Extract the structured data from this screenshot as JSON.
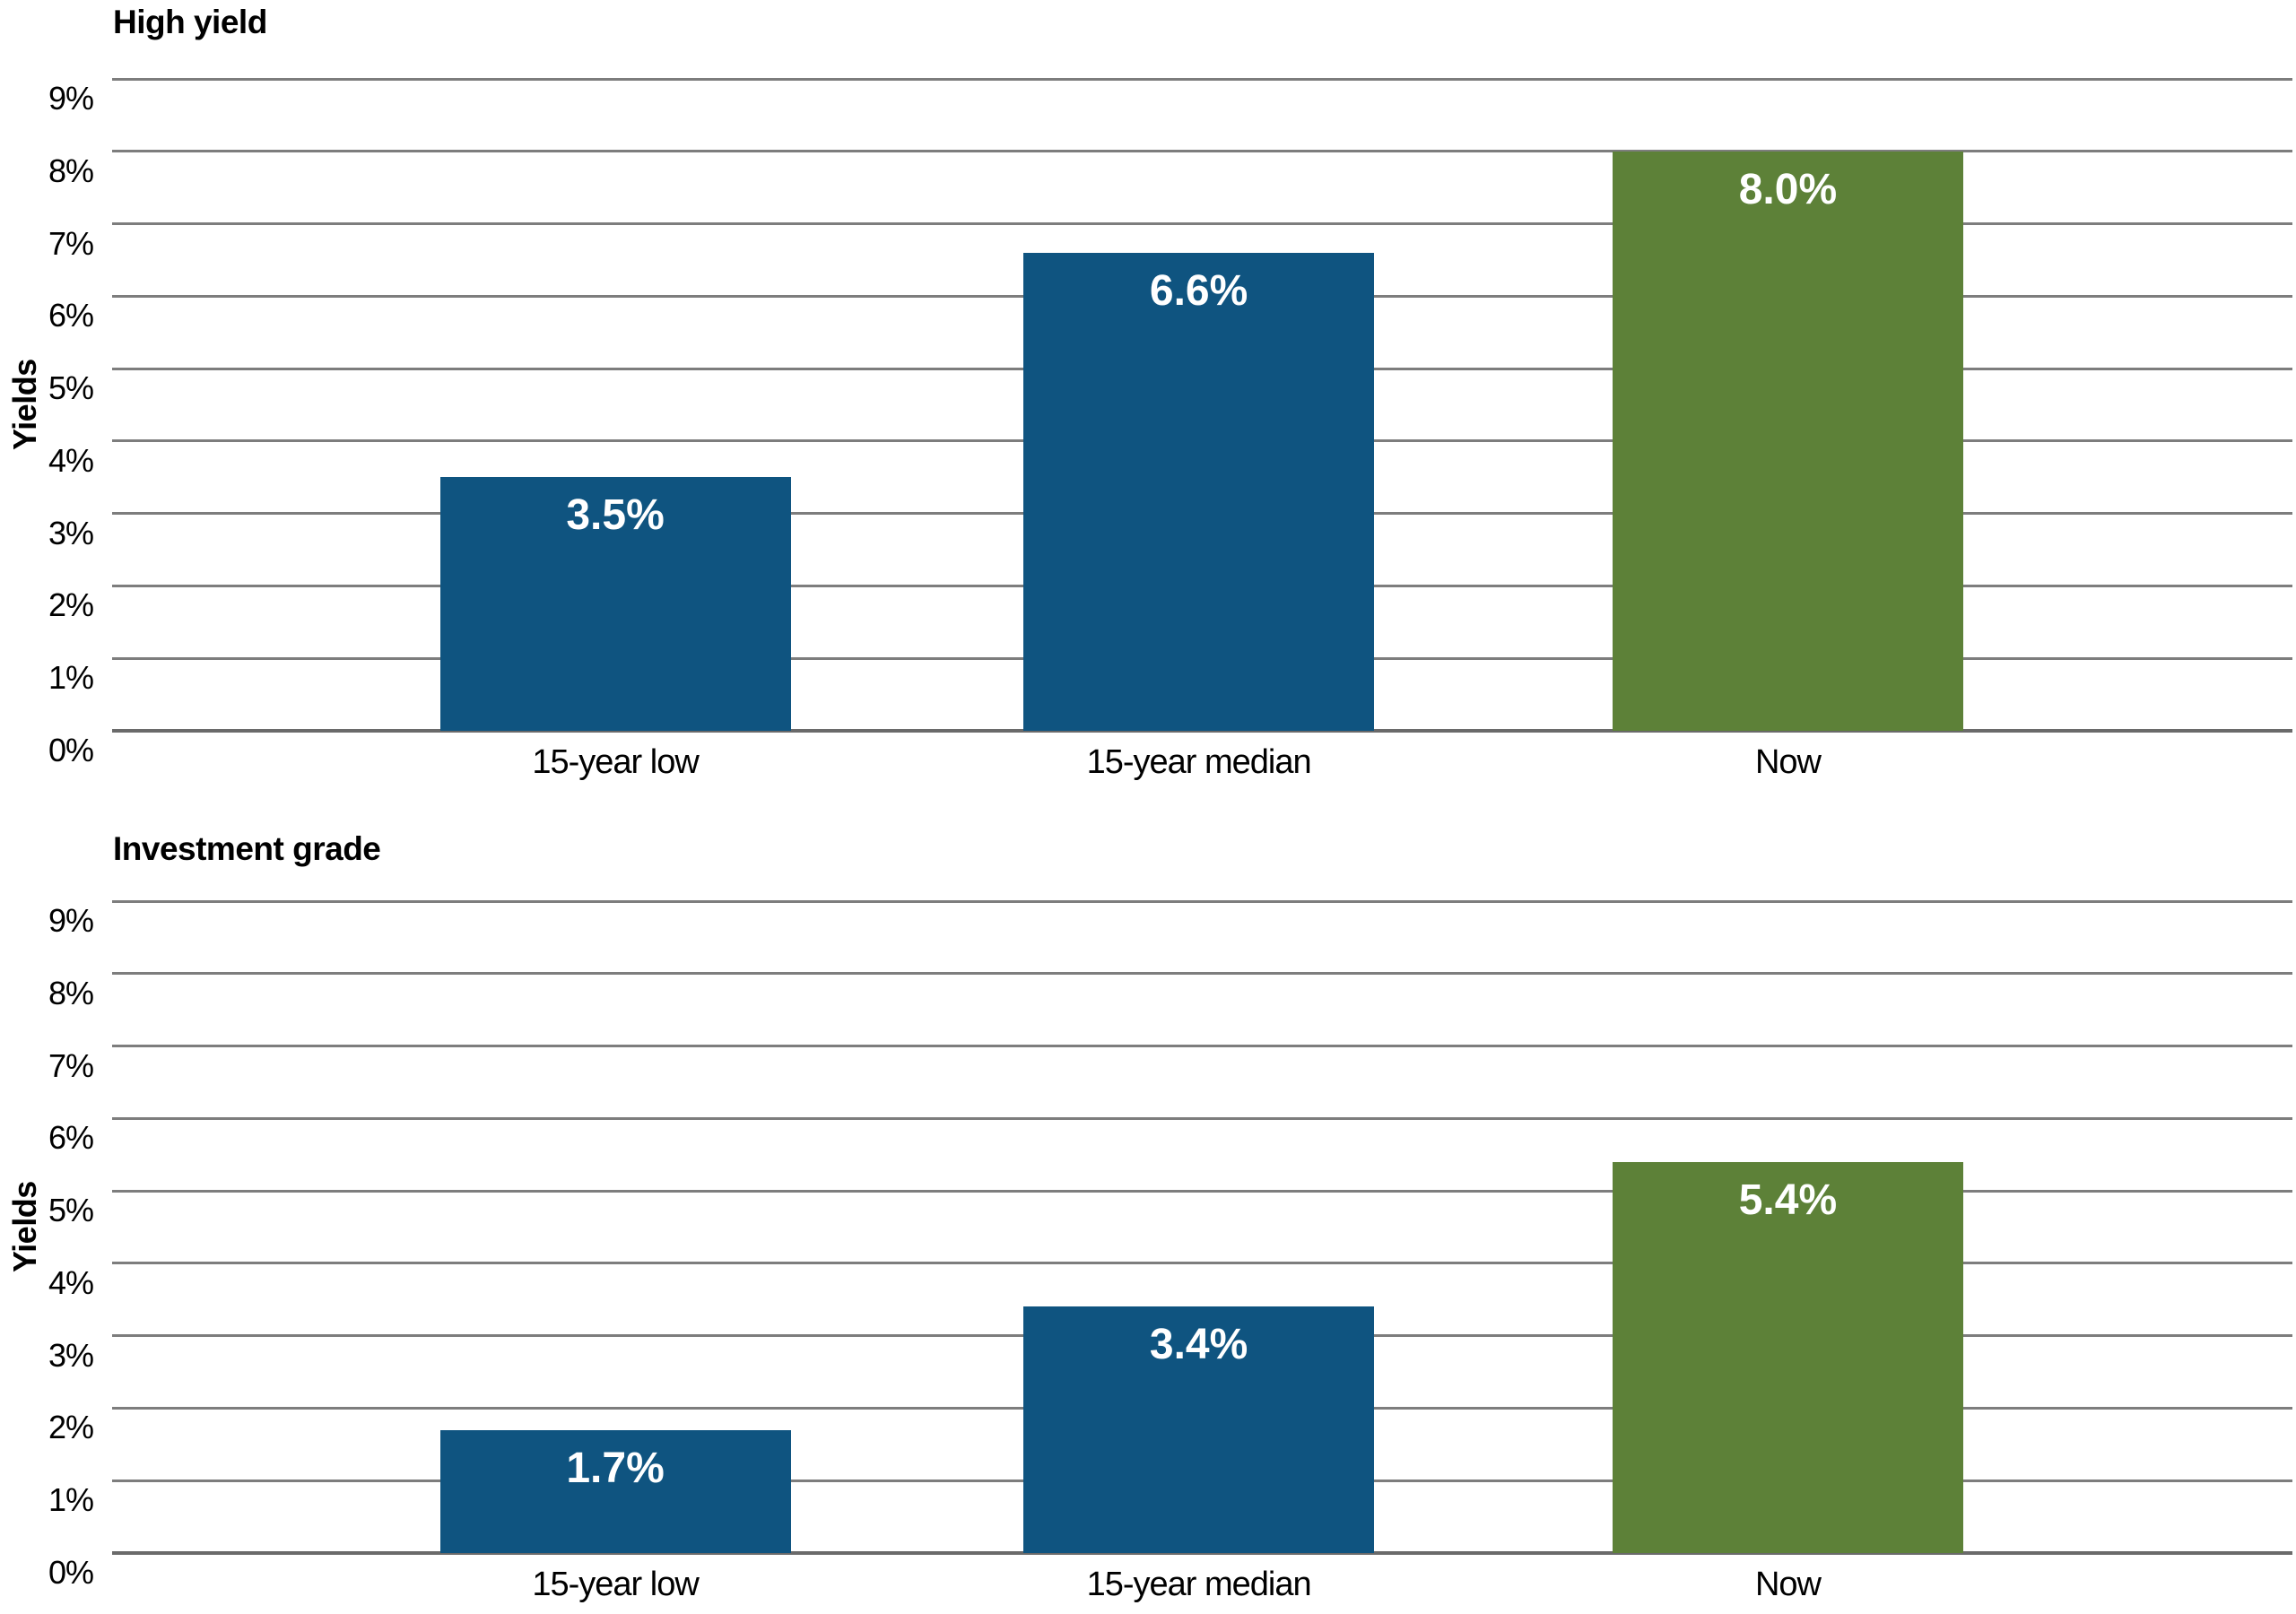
{
  "page": {
    "background": "#ffffff"
  },
  "colors": {
    "bar_blue": "#0f5480",
    "bar_green": "#5d8138",
    "gridline": "#7d7d7d",
    "axis_baseline": "#6a6a6a",
    "text": "#000000",
    "value_label_text": "#ffffff"
  },
  "chart_data": [
    {
      "type": "bar",
      "title": "High yield",
      "xlabel": "",
      "ylabel": "Yields",
      "categories": [
        "15-year low",
        "15-year median",
        "Now"
      ],
      "values": [
        3.5,
        6.6,
        8.0
      ],
      "value_labels": [
        "3.5%",
        "6.6%",
        "8.0%"
      ],
      "bar_colors": [
        "#0f5480",
        "#0f5480",
        "#5d8138"
      ],
      "ylim": [
        0,
        9
      ],
      "ytick_step": 1,
      "ytick_labels": [
        "9%",
        "8%",
        "7%",
        "6%",
        "5%",
        "4%",
        "3%",
        "2%",
        "1%",
        "0%"
      ],
      "grid": true,
      "legend_position": "none"
    },
    {
      "type": "bar",
      "title": "Investment grade",
      "xlabel": "",
      "ylabel": "Yields",
      "categories": [
        "15-year low",
        "15-year median",
        "Now"
      ],
      "values": [
        1.7,
        3.4,
        5.4
      ],
      "value_labels": [
        "1.7%",
        "3.4%",
        "5.4%"
      ],
      "bar_colors": [
        "#0f5480",
        "#0f5480",
        "#5d8138"
      ],
      "ylim": [
        0,
        9
      ],
      "ytick_step": 1,
      "ytick_labels": [
        "9%",
        "8%",
        "7%",
        "6%",
        "5%",
        "4%",
        "3%",
        "2%",
        "1%",
        "0%"
      ],
      "grid": true,
      "legend_position": "none"
    }
  ]
}
